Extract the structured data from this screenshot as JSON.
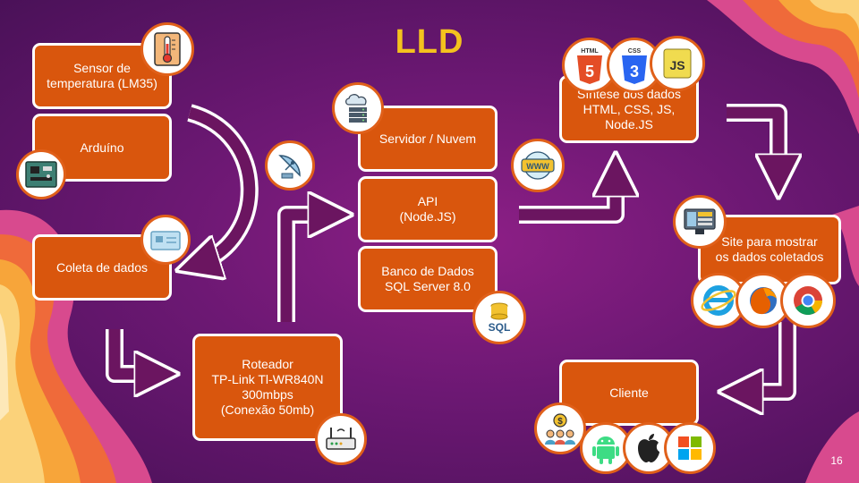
{
  "slide": {
    "title": "LLD",
    "page_number": "16"
  },
  "colors": {
    "background": "#6c1873",
    "box": "#d9560d",
    "title": "#f4c21e",
    "arrow": "#6b1560"
  },
  "nodes": {
    "sensor": "Sensor de\ntemperatura (LM35)",
    "arduino": "Arduíno",
    "coleta": "Coleta de dados",
    "roteador": "Roteador\nTP-Link Tl-WR840N\n300mbps\n(Conexão 50mb)",
    "servidor": "Servidor /  Nuvem",
    "api": "API\n(Node.JS)",
    "banco": "Banco de Dados\nSQL Server 8.0",
    "sintese": "Síntese dos dados\nHTML, CSS, JS,\nNode.JS",
    "site": "Site para mostrar\nos dados coletados",
    "cliente": "Cliente"
  },
  "badges": {
    "html": "HTML",
    "css": "CSS",
    "js": "JS",
    "www": "WWW",
    "sql": "SQL",
    "android": "android-icon",
    "apple": "apple-icon",
    "windows": "windows-icon"
  }
}
